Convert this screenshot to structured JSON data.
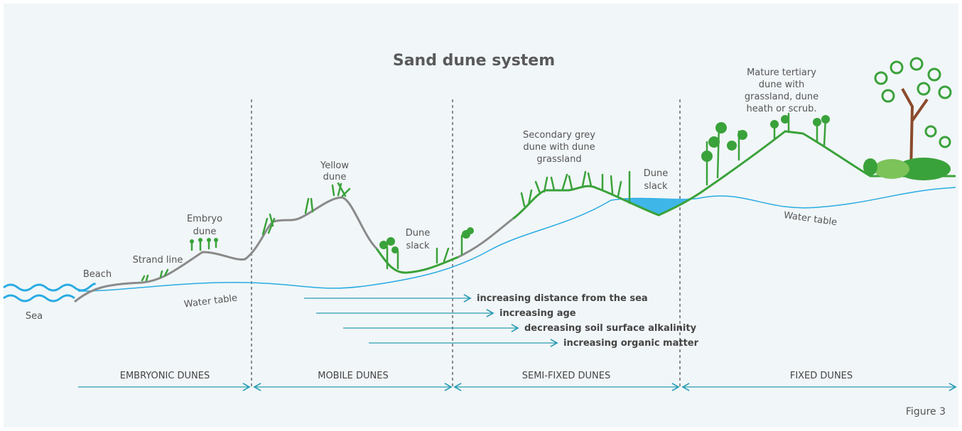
{
  "title": "Sand dune system",
  "labels": [
    {
      "lines": [
        "Sea"
      ]
    },
    {
      "lines": [
        "Beach"
      ]
    },
    {
      "lines": [
        "Strand line"
      ]
    },
    {
      "lines": [
        "Embryo",
        "dune"
      ]
    },
    {
      "lines": [
        "Yellow",
        "dune"
      ]
    },
    {
      "lines": [
        "Dune",
        "slack"
      ]
    },
    {
      "lines": [
        "Secondary grey",
        "dune with dune",
        "grassland"
      ]
    },
    {
      "lines": [
        "Dune",
        "slack"
      ]
    },
    {
      "lines": [
        "Mature tertiary",
        "dune with",
        "grassland, dune",
        "heath or scrub."
      ]
    }
  ],
  "water_table_labels": [
    "Water table",
    "Water table"
  ],
  "trends": [
    "increasing distance from the sea",
    "increasing age",
    "decreasing soil surface alkalinity",
    "increasing organic matter"
  ],
  "zones": [
    "EMBRYONIC DUNES",
    "MOBILE DUNES",
    "SEMI-FIXED DUNES",
    "FIXED DUNES"
  ],
  "figure_label": "Figure 3"
}
